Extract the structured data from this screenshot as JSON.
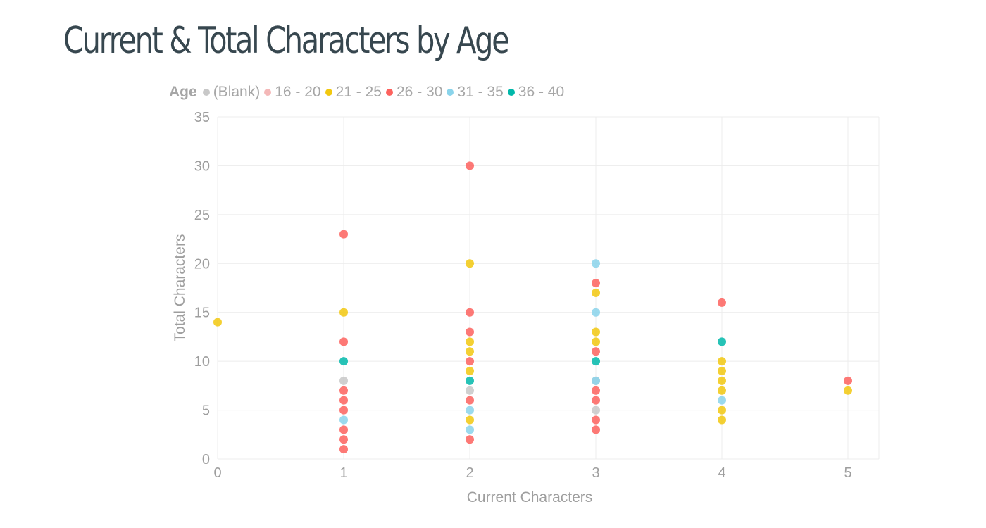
{
  "page": {
    "title": "Current & Total Characters by Age"
  },
  "legend": {
    "title": "Age",
    "items": [
      {
        "label": "(Blank)",
        "color": "#c8c8c8"
      },
      {
        "label": "16 - 20",
        "color": "#f4b8b8"
      },
      {
        "label": "21 - 25",
        "color": "#f2c80f"
      },
      {
        "label": "26 - 30",
        "color": "#fd625e"
      },
      {
        "label": "31 - 35",
        "color": "#8ad4eb"
      },
      {
        "label": "36 - 40",
        "color": "#01b8aa"
      }
    ]
  },
  "chart_data": {
    "type": "scatter",
    "title": "Current & Total Characters by Age",
    "xlabel": "Current Characters",
    "ylabel": "Total Characters",
    "xlim": [
      0,
      5.25
    ],
    "ylim": [
      0,
      35
    ],
    "xticks": [
      "0",
      "1",
      "2",
      "3",
      "4",
      "5"
    ],
    "yticks": [
      "0",
      "5",
      "10",
      "15",
      "20",
      "25",
      "30",
      "35"
    ],
    "grid": true,
    "legend_position": "top-left",
    "series": [
      {
        "name": "(Blank)",
        "color": "#c8c8c8",
        "points": [
          [
            1,
            8
          ],
          [
            2,
            7
          ],
          [
            3,
            5
          ],
          [
            3,
            8
          ]
        ]
      },
      {
        "name": "16 - 20",
        "color": "#f4b8b8",
        "points": []
      },
      {
        "name": "21 - 25",
        "color": "#f2c80f",
        "points": [
          [
            0,
            14
          ],
          [
            1,
            15
          ],
          [
            2,
            20
          ],
          [
            2,
            12
          ],
          [
            2,
            11
          ],
          [
            2,
            9
          ],
          [
            2,
            4
          ],
          [
            3,
            17
          ],
          [
            3,
            13
          ],
          [
            3,
            12
          ],
          [
            4,
            10
          ],
          [
            4,
            9
          ],
          [
            4,
            8
          ],
          [
            4,
            7
          ],
          [
            4,
            5
          ],
          [
            4,
            4
          ],
          [
            5,
            7
          ]
        ]
      },
      {
        "name": "26 - 30",
        "color": "#fd625e",
        "points": [
          [
            1,
            23
          ],
          [
            1,
            12
          ],
          [
            1,
            7
          ],
          [
            1,
            6
          ],
          [
            1,
            5
          ],
          [
            1,
            3
          ],
          [
            1,
            2
          ],
          [
            1,
            1
          ],
          [
            2,
            30
          ],
          [
            2,
            15
          ],
          [
            2,
            13
          ],
          [
            2,
            10
          ],
          [
            2,
            6
          ],
          [
            2,
            2
          ],
          [
            3,
            18
          ],
          [
            3,
            11
          ],
          [
            3,
            7
          ],
          [
            3,
            6
          ],
          [
            3,
            4
          ],
          [
            3,
            3
          ],
          [
            4,
            16
          ],
          [
            5,
            8
          ]
        ]
      },
      {
        "name": "31 - 35",
        "color": "#8ad4eb",
        "points": [
          [
            1,
            4
          ],
          [
            2,
            5
          ],
          [
            2,
            3
          ],
          [
            3,
            20
          ],
          [
            3,
            15
          ],
          [
            3,
            8
          ],
          [
            4,
            6
          ]
        ]
      },
      {
        "name": "36 - 40",
        "color": "#01b8aa",
        "points": [
          [
            1,
            10
          ],
          [
            2,
            8
          ],
          [
            3,
            10
          ],
          [
            4,
            12
          ]
        ]
      }
    ]
  }
}
